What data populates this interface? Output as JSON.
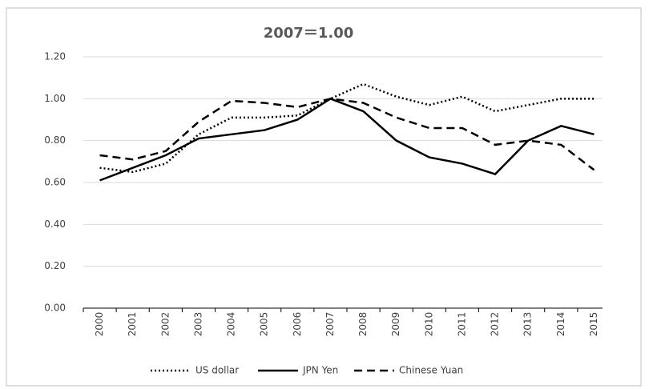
{
  "chart_data": {
    "type": "line",
    "title": "2007＝1.00",
    "categories": [
      "2000",
      "2001",
      "2002",
      "2003",
      "2004",
      "2005",
      "2006",
      "2007",
      "2008",
      "2009",
      "2010",
      "2011",
      "2012",
      "2013",
      "2014",
      "2015"
    ],
    "series": [
      {
        "name": "US dollar",
        "color": "#000000",
        "dash": "dotted",
        "values": [
          0.67,
          0.65,
          0.69,
          0.83,
          0.91,
          0.91,
          0.92,
          1.0,
          1.07,
          1.01,
          0.97,
          1.01,
          0.94,
          0.97,
          1.0,
          1.0
        ]
      },
      {
        "name": "JPN Yen",
        "color": "#000000",
        "dash": "solid",
        "values": [
          0.61,
          0.67,
          0.73,
          0.81,
          0.83,
          0.85,
          0.9,
          1.0,
          0.94,
          0.8,
          0.72,
          0.69,
          0.64,
          0.8,
          0.87,
          0.83
        ]
      },
      {
        "name": "Chinese Yuan",
        "color": "#000000",
        "dash": "dashed",
        "values": [
          0.73,
          0.71,
          0.75,
          0.89,
          0.99,
          0.98,
          0.96,
          1.0,
          0.98,
          0.91,
          0.86,
          0.86,
          0.78,
          0.8,
          0.78,
          0.66
        ]
      }
    ],
    "ylim": [
      0,
      1.2
    ],
    "yticks": [
      {
        "value": 0,
        "label": "0.00"
      },
      {
        "value": 0.2,
        "label": "0.20"
      },
      {
        "value": 0.4,
        "label": "0.40"
      },
      {
        "value": 0.6,
        "label": "0.60"
      },
      {
        "value": 0.8,
        "label": "0.80"
      },
      {
        "value": 1.0,
        "label": "1.00"
      },
      {
        "value": 1.2,
        "label": "1.20"
      }
    ],
    "grid": true,
    "legend": "bottom"
  }
}
